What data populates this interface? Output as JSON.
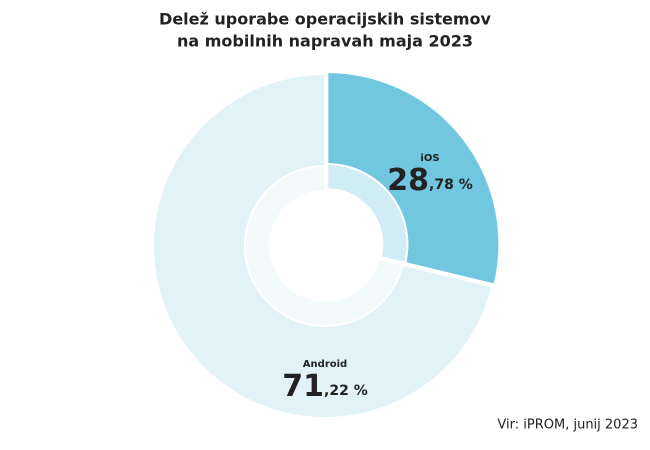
{
  "chart_data": {
    "type": "donut",
    "title": [
      "Delež uporabe operacijskih sistemov",
      "na mobilnih napravah maja 2023"
    ],
    "categories": [
      "iOS",
      "Android"
    ],
    "values": [
      28.78,
      71.22
    ],
    "value_labels": [
      "28,78 %",
      "71,22 %"
    ],
    "colors": [
      "#72c7e0",
      "#e2f3f8"
    ],
    "inner_colors": [
      "#d0ecf5",
      "#f2fafc"
    ],
    "source": "Vir: iPROM, junij 2023"
  }
}
